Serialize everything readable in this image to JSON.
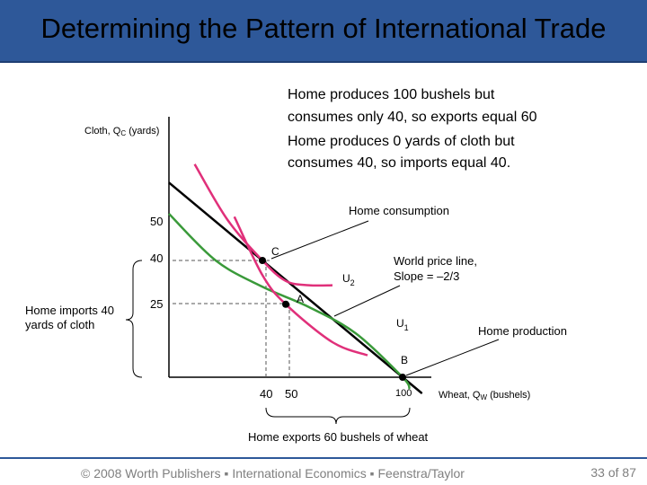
{
  "title": "Determining the Pattern of International Trade",
  "description": [
    "Home produces 100 bushels but",
    "consumes only 40, so exports equal 60",
    "Home produces 0 yards of cloth but",
    "consumes 40, so imports equal 40."
  ],
  "footer": {
    "text": "© 2008 Worth Publishers ▪ International Economics ▪ Feenstra/Taylor",
    "page": "33 of 87"
  },
  "colors": {
    "ppf": "#3a9a3a",
    "indifference": "#e0307a",
    "price_line": "#000000",
    "title_bar": "#2e5899"
  },
  "chart_data": {
    "type": "line",
    "xlabel_main": "Wheat, Q",
    "xlabel_sub": "W",
    "xlabel_unit": "(bushels)",
    "ylabel_main": "Cloth, Q",
    "ylabel_sub": "C",
    "ylabel_unit": "(yards)",
    "x_ticks": [
      "40",
      "50",
      "100"
    ],
    "y_ticks": [
      "50",
      "40",
      "25"
    ],
    "series": [
      {
        "role": "ppf",
        "values": [
          [
            0,
            56
          ],
          [
            20,
            40
          ],
          [
            40,
            31
          ],
          [
            60,
            24
          ],
          [
            80,
            15
          ],
          [
            100,
            0
          ],
          [
            103,
            -4
          ]
        ]
      },
      {
        "role": "indifference",
        "name": "U2",
        "values": [
          [
            11,
            73
          ],
          [
            25,
            54
          ],
          [
            40,
            40
          ],
          [
            50,
            33
          ],
          [
            60,
            31.5
          ],
          [
            70,
            31.5
          ]
        ]
      },
      {
        "role": "indifference",
        "name": "U1",
        "values": [
          [
            28,
            55
          ],
          [
            40,
            35
          ],
          [
            50,
            25
          ],
          [
            70,
            12
          ],
          [
            85,
            7.5
          ]
        ]
      },
      {
        "role": "price_line",
        "label": "World price line,",
        "label_2": "Slope = –2/3",
        "values": [
          [
            0,
            66.67
          ],
          [
            100,
            0
          ],
          [
            102,
            -1.33
          ]
        ]
      }
    ],
    "points": [
      {
        "label": "C",
        "x": 40,
        "y": 40
      },
      {
        "label": "A",
        "x": 50,
        "y": 25
      },
      {
        "label": "B",
        "x": 100,
        "y": 0
      }
    ],
    "annotations": {
      "home_consumption": "Home consumption",
      "home_production": "Home production",
      "home_imports_1": "Home imports 40",
      "home_imports_2": "yards of cloth",
      "home_exports": "Home exports 60 bushels of wheat",
      "u2": "U",
      "u2_sub": "2",
      "u1": "U",
      "u1_sub": "1"
    }
  }
}
